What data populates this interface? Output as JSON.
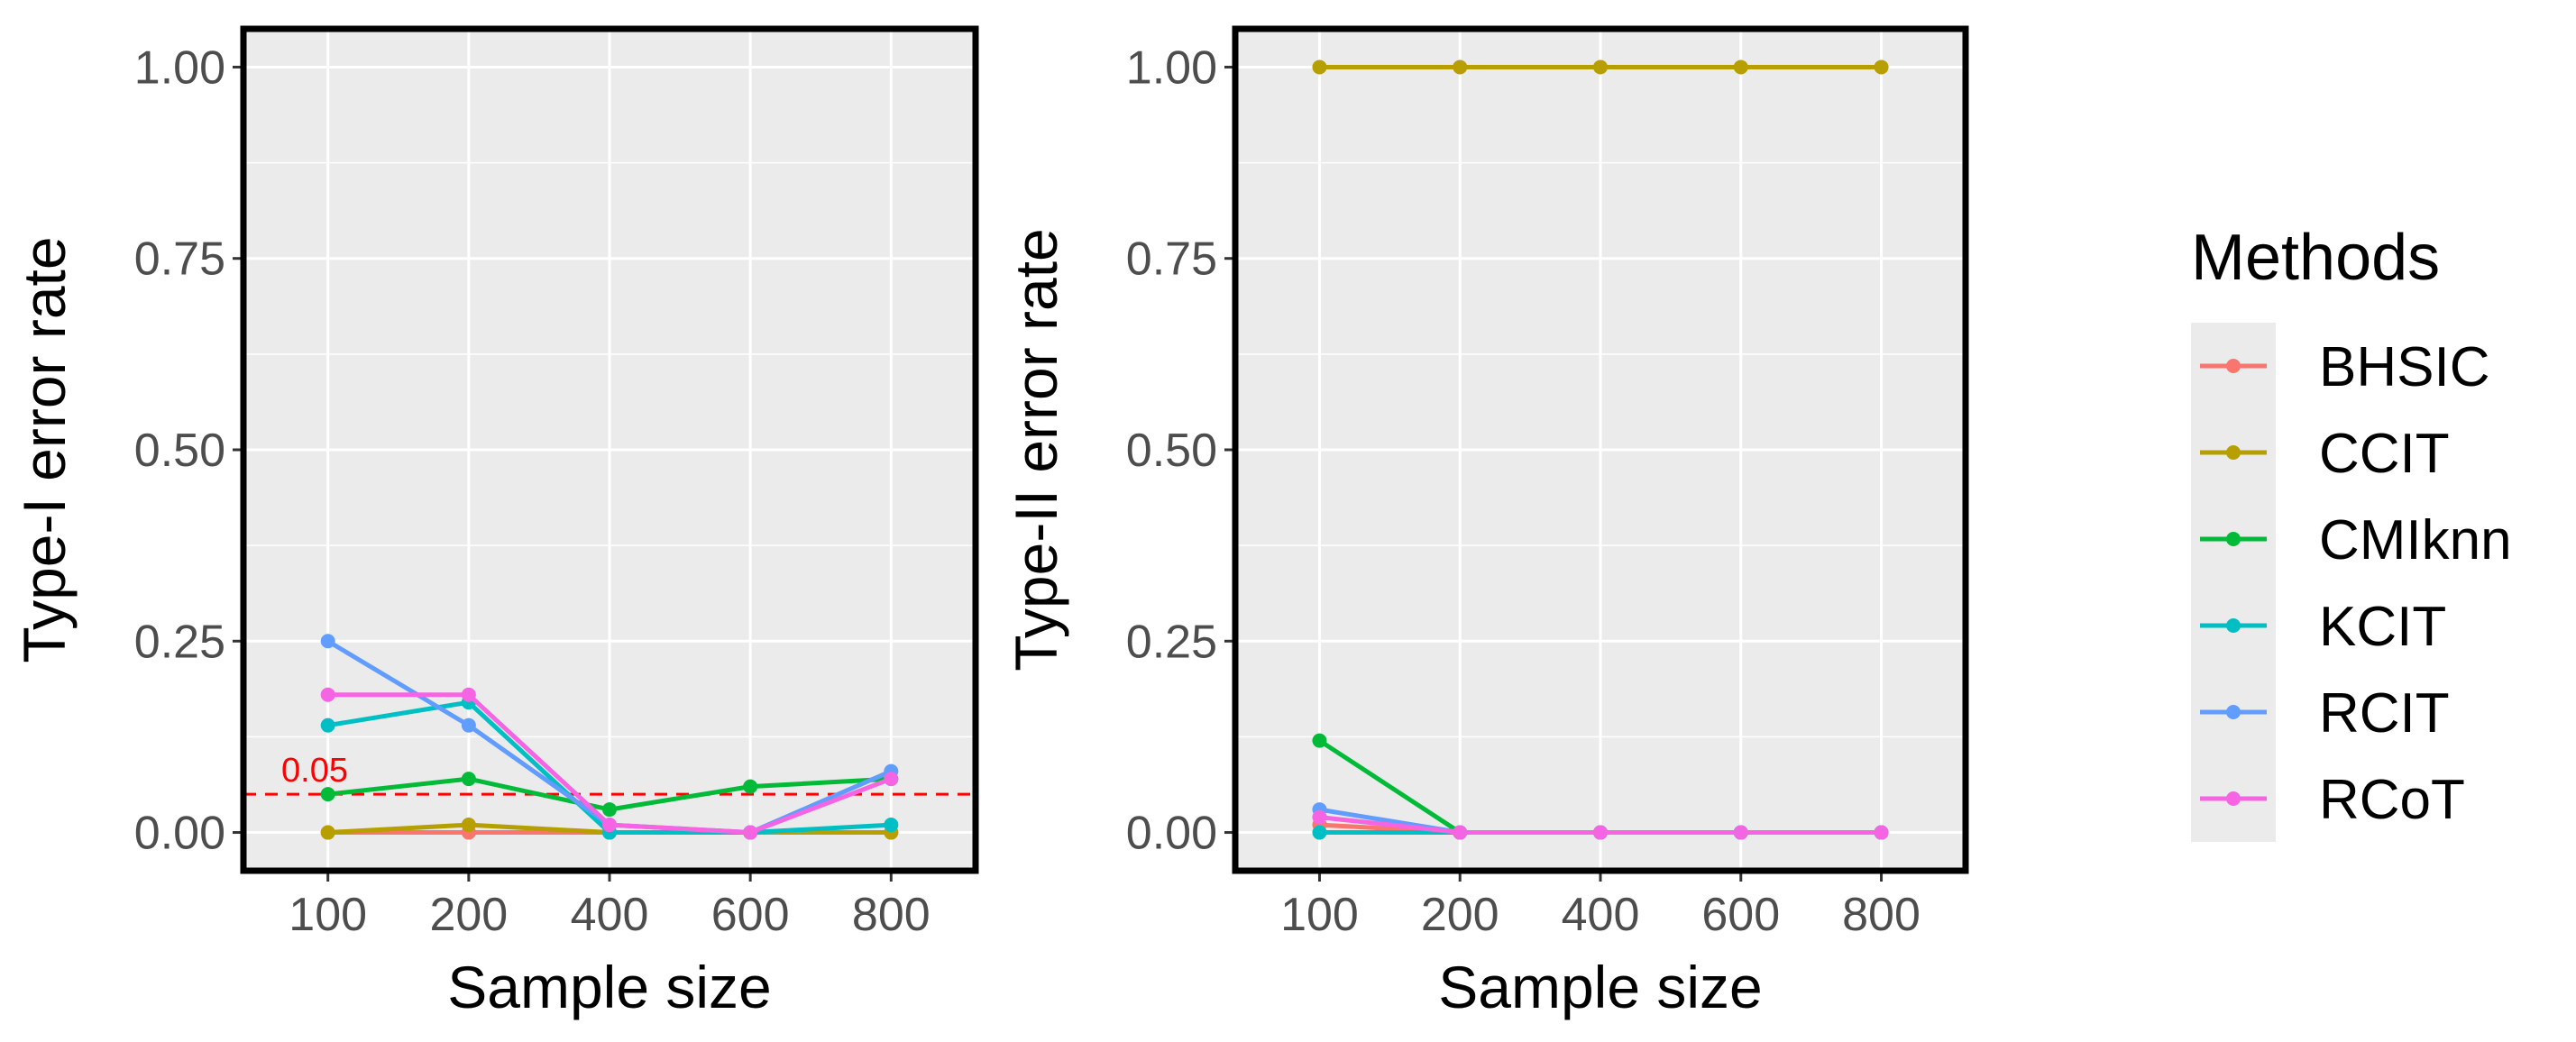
{
  "chart_data": [
    {
      "type": "line",
      "xlabel": "Sample size",
      "ylabel": "Type-I error rate",
      "ylim": [
        -0.05,
        1.05
      ],
      "y_ticks": [
        "0.00",
        "0.25",
        "0.50",
        "0.75",
        "1.00"
      ],
      "y_tick_values": [
        0,
        0.25,
        0.5,
        0.75,
        1.0
      ],
      "categories": [
        "100",
        "200",
        "400",
        "600",
        "800"
      ],
      "grid": true,
      "reference_line": {
        "value": 0.05,
        "label": "0.05",
        "color": "#FF0000",
        "style": "dashed"
      },
      "series": [
        {
          "name": "BHSIC",
          "values": [
            0.0,
            0.0,
            0.0,
            0.0,
            0.0
          ]
        },
        {
          "name": "CCIT",
          "values": [
            0.0,
            0.01,
            0.0,
            0.0,
            0.0
          ]
        },
        {
          "name": "CMIknn",
          "values": [
            0.05,
            0.07,
            0.03,
            0.06,
            0.07
          ]
        },
        {
          "name": "KCIT",
          "values": [
            0.14,
            0.17,
            0.0,
            0.0,
            0.01
          ]
        },
        {
          "name": "RCIT",
          "values": [
            0.25,
            0.14,
            0.01,
            0.0,
            0.08
          ]
        },
        {
          "name": "RCoT",
          "values": [
            0.18,
            0.18,
            0.01,
            0.0,
            0.07
          ]
        }
      ]
    },
    {
      "type": "line",
      "xlabel": "Sample size",
      "ylabel": "Type-II error rate",
      "ylim": [
        -0.05,
        1.05
      ],
      "y_ticks": [
        "0.00",
        "0.25",
        "0.50",
        "0.75",
        "1.00"
      ],
      "y_tick_values": [
        0,
        0.25,
        0.5,
        0.75,
        1.0
      ],
      "categories": [
        "100",
        "200",
        "400",
        "600",
        "800"
      ],
      "grid": true,
      "series": [
        {
          "name": "BHSIC",
          "values": [
            0.01,
            0.0,
            0.0,
            0.0,
            0.0
          ]
        },
        {
          "name": "CCIT",
          "values": [
            1.0,
            1.0,
            1.0,
            1.0,
            1.0
          ]
        },
        {
          "name": "CMIknn",
          "values": [
            0.12,
            0.0,
            0.0,
            0.0,
            0.0
          ]
        },
        {
          "name": "KCIT",
          "values": [
            0.0,
            0.0,
            0.0,
            0.0,
            0.0
          ]
        },
        {
          "name": "RCIT",
          "values": [
            0.03,
            0.0,
            0.0,
            0.0,
            0.0
          ]
        },
        {
          "name": "RCoT",
          "values": [
            0.02,
            0.0,
            0.0,
            0.0,
            0.0
          ]
        }
      ]
    }
  ],
  "legend": {
    "title": "Methods",
    "placement": "right",
    "items": [
      {
        "name": "BHSIC",
        "color": "#F8766D"
      },
      {
        "name": "CCIT",
        "color": "#B79F00"
      },
      {
        "name": "CMIknn",
        "color": "#00BA38"
      },
      {
        "name": "KCIT",
        "color": "#00BFC4"
      },
      {
        "name": "RCIT",
        "color": "#619CFF"
      },
      {
        "name": "RCoT",
        "color": "#F564E3"
      }
    ]
  },
  "colors": {
    "panel_background": "#EBEBEB",
    "grid": "#FFFFFF",
    "panel_border": "#000000",
    "tick_text": "#4D4D4D"
  }
}
